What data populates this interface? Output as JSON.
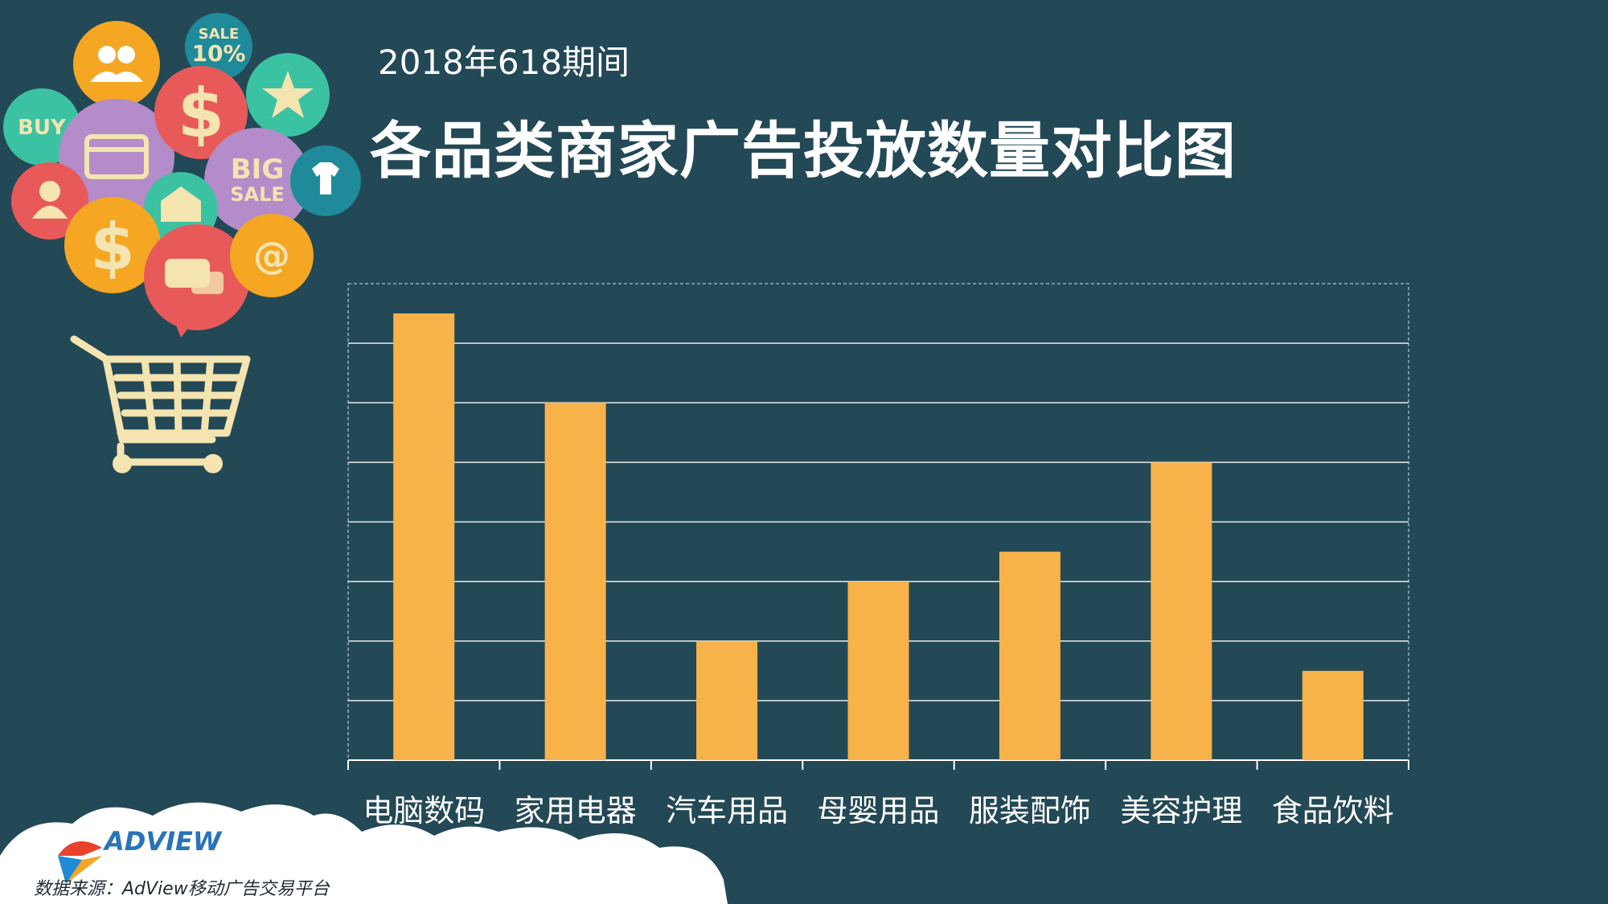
{
  "header": {
    "subtitle": "2018年618期间",
    "title": "各品类商家广告投放数量对比图"
  },
  "footer": {
    "brand": "ADVIEW",
    "source": "数据来源：AdView移动广告交易平台"
  },
  "decor": {
    "badges": [
      "SALE",
      "10%",
      "BUY",
      "BIG",
      "SALE",
      "$",
      "$",
      "@"
    ],
    "icons": [
      "users-icon",
      "star-icon",
      "credit-card-icon",
      "user-icon",
      "shirt-icon",
      "mail-icon",
      "chat-icon",
      "at-icon",
      "dollar-icon",
      "shopping-cart-icon"
    ]
  },
  "colors": {
    "background": "#234856",
    "bar": "#f8b24a",
    "grid": "#ffffff"
  },
  "chart_data": {
    "type": "bar",
    "categories": [
      "电脑数码",
      "家用电器",
      "汽车用品",
      "母婴用品",
      "服装配饰",
      "美容护理",
      "食品饮料"
    ],
    "values": [
      7.5,
      6,
      2,
      3,
      3.5,
      5,
      1.5
    ],
    "ylim": [
      0,
      8
    ],
    "grid": true,
    "y_ticks_shown": false
  }
}
